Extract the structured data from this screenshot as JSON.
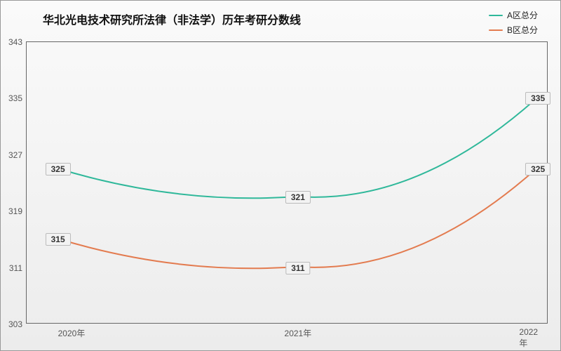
{
  "chart": {
    "type": "line",
    "title": "华北光电技术研究所法律（非法学）历年考研分数线",
    "title_fontsize": 16,
    "label_fontsize": 12,
    "background": "linear-gradient(#fafafa,#ececec)",
    "border_color": "#666666",
    "text_color": "#333333",
    "x": {
      "categories": [
        "2020年",
        "2021年",
        "2022年"
      ],
      "positions_pct": [
        6,
        52,
        98
      ]
    },
    "y": {
      "min": 303,
      "max": 343,
      "tick_step": 8,
      "ticks": [
        303,
        311,
        319,
        327,
        335,
        343
      ]
    },
    "series": [
      {
        "name": "A区总分",
        "color": "#2fb89a",
        "line_width": 2,
        "smooth": true,
        "values": [
          325,
          321,
          335
        ]
      },
      {
        "name": "B区总分",
        "color": "#e37b4f",
        "line_width": 2,
        "smooth": true,
        "values": [
          315,
          311,
          325
        ]
      }
    ],
    "legend": {
      "position": "top-right"
    }
  }
}
